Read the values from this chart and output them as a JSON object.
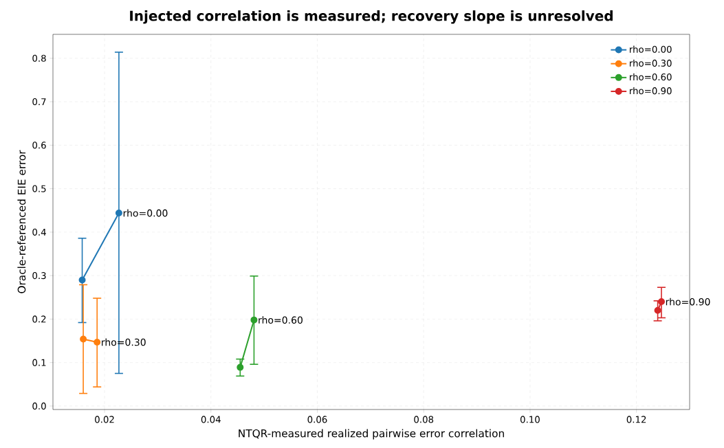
{
  "chart_data": {
    "type": "line",
    "title": "Injected correlation is measured; recovery slope is unresolved",
    "xlabel": "NTQR-measured realized pairwise error correlation",
    "ylabel": "Oracle-referenced EIE error",
    "series": [
      {
        "name": "rho=0.00",
        "color": "#1f77b4",
        "x": [
          0.0158,
          0.0227
        ],
        "values": [
          0.29,
          0.444
        ],
        "errors": [
          [
            0.192,
            0.386
          ],
          [
            0.075,
            0.814
          ]
        ]
      },
      {
        "name": "rho=0.30",
        "color": "#ff7f0e",
        "x": [
          0.016,
          0.0186
        ],
        "values": [
          0.154,
          0.147
        ],
        "errors": [
          [
            0.029,
            0.279
          ],
          [
            0.044,
            0.248
          ]
        ]
      },
      {
        "name": "rho=0.60",
        "color": "#2ca02c",
        "x": [
          0.0455,
          0.0481
        ],
        "values": [
          0.089,
          0.198
        ],
        "errors": [
          [
            0.069,
            0.108
          ],
          [
            0.096,
            0.299
          ]
        ]
      },
      {
        "name": "rho=0.90",
        "color": "#d62728",
        "x": [
          0.124,
          0.1247
        ],
        "values": [
          0.22,
          0.24
        ],
        "errors": [
          [
            0.196,
            0.242
          ],
          [
            0.203,
            0.273
          ]
        ]
      }
    ],
    "annotations": [
      {
        "text": "rho=0.00",
        "x": 0.0227,
        "y": 0.444
      },
      {
        "text": "rho=0.30",
        "x": 0.0186,
        "y": 0.147
      },
      {
        "text": "rho=0.60",
        "x": 0.0481,
        "y": 0.198
      },
      {
        "text": "rho=0.90",
        "x": 0.1247,
        "y": 0.24
      }
    ],
    "xlim": [
      0.0103,
      0.13
    ],
    "ylim": [
      -0.008,
      0.855
    ],
    "xticks": [
      0.02,
      0.04,
      0.06,
      0.08,
      {
        "value": 0.1,
        "label": "0.10"
      },
      0.12
    ],
    "yticks": [
      {
        "value": 0,
        "label": "0.0"
      },
      {
        "value": 0.1,
        "label": "0.1"
      },
      {
        "value": 0.2,
        "label": "0.2"
      },
      {
        "value": 0.3,
        "label": "0.3"
      },
      {
        "value": 0.4,
        "label": "0.4"
      },
      {
        "value": 0.5,
        "label": "0.5"
      },
      {
        "value": 0.6,
        "label": "0.6"
      },
      {
        "value": 0.7,
        "label": "0.7"
      },
      {
        "value": 0.8,
        "label": "0.8"
      }
    ],
    "grid": true,
    "legend": "top right",
    "marker": "circle",
    "line_style": "solid"
  }
}
